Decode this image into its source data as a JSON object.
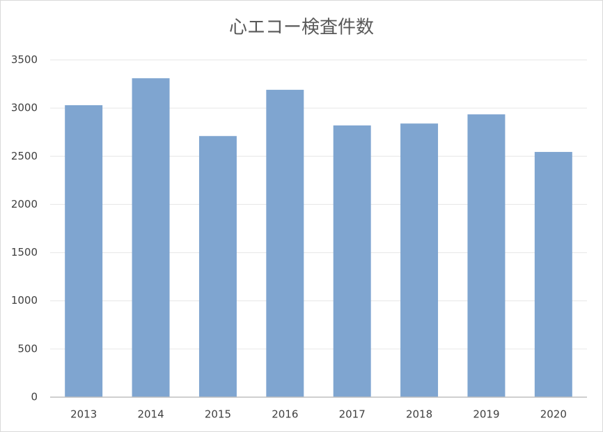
{
  "chart_data": {
    "type": "bar",
    "title": "心エコー検査件数",
    "categories": [
      "2013",
      "2014",
      "2015",
      "2016",
      "2017",
      "2018",
      "2019",
      "2020"
    ],
    "values": [
      3030,
      3310,
      2710,
      3190,
      2820,
      2840,
      2935,
      2545
    ],
    "color": "#7fa5d0",
    "ylim": [
      0,
      3500
    ],
    "yticks": [
      0,
      500,
      1000,
      1500,
      2000,
      2500,
      3000,
      3500
    ],
    "grid": true
  }
}
